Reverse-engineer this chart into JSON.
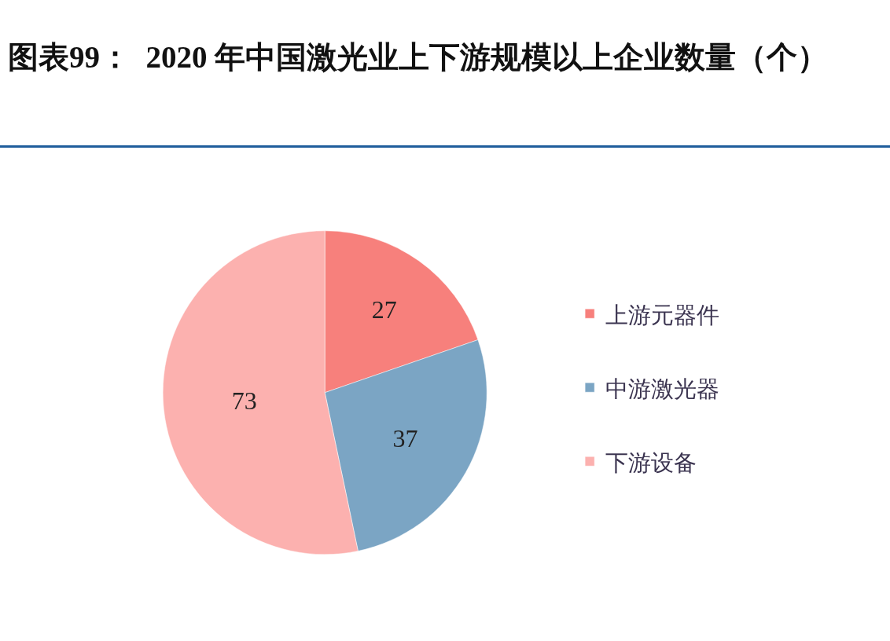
{
  "chart_data": {
    "type": "pie",
    "title": "图表99：  2020 年中国激光业上下游规模以上企业数量（个）",
    "categories": [
      "上游元器件",
      "中游激光器",
      "下游设备"
    ],
    "values": [
      27,
      37,
      73
    ],
    "colors": [
      "#f7807c",
      "#7ba5c4",
      "#fcb1af"
    ],
    "data_labels": true,
    "legend": "right"
  }
}
